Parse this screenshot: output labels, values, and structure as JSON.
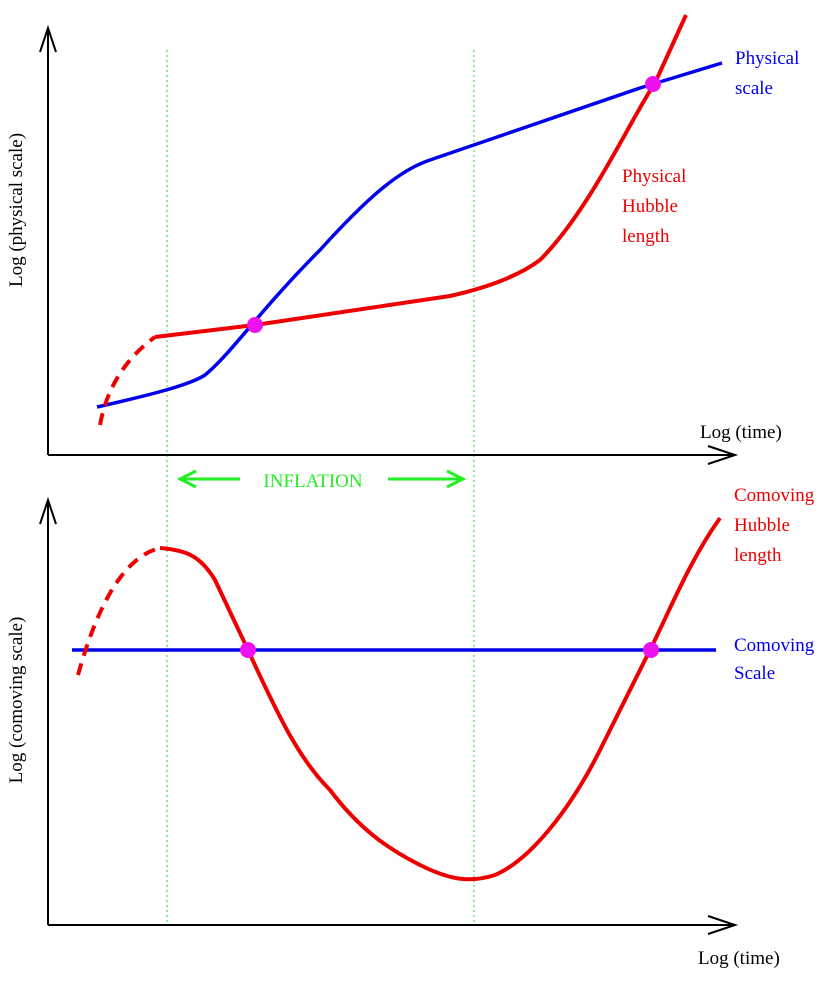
{
  "top_panel": {
    "y_axis_label": "Log (physical scale)",
    "x_axis_label": "Log (time)",
    "physical_scale_label": [
      "Physical",
      "scale"
    ],
    "hubble_label": [
      "Physical",
      "Hubble",
      "length"
    ]
  },
  "inflation_label": "INFLATION",
  "bottom_panel": {
    "y_axis_label": "Log (comoving scale)",
    "x_axis_label": "Log (time)",
    "hubble_label": [
      "Comoving",
      "Hubble",
      "length"
    ],
    "comoving_scale_label": [
      "Comoving",
      "Scale"
    ]
  }
}
